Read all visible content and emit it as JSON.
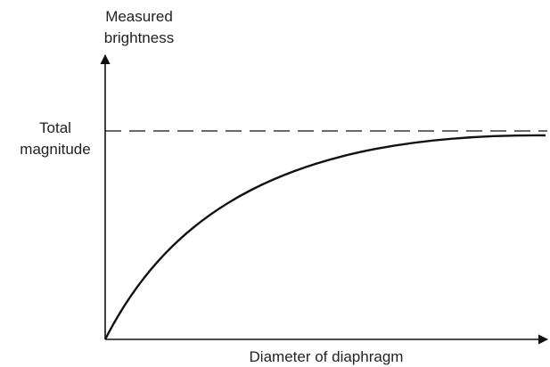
{
  "y_axis_label": [
    "Measured",
    "brightness"
  ],
  "reference_label": [
    "Total",
    "magnitude"
  ],
  "x_axis_label": "Diameter of diaphragm"
}
